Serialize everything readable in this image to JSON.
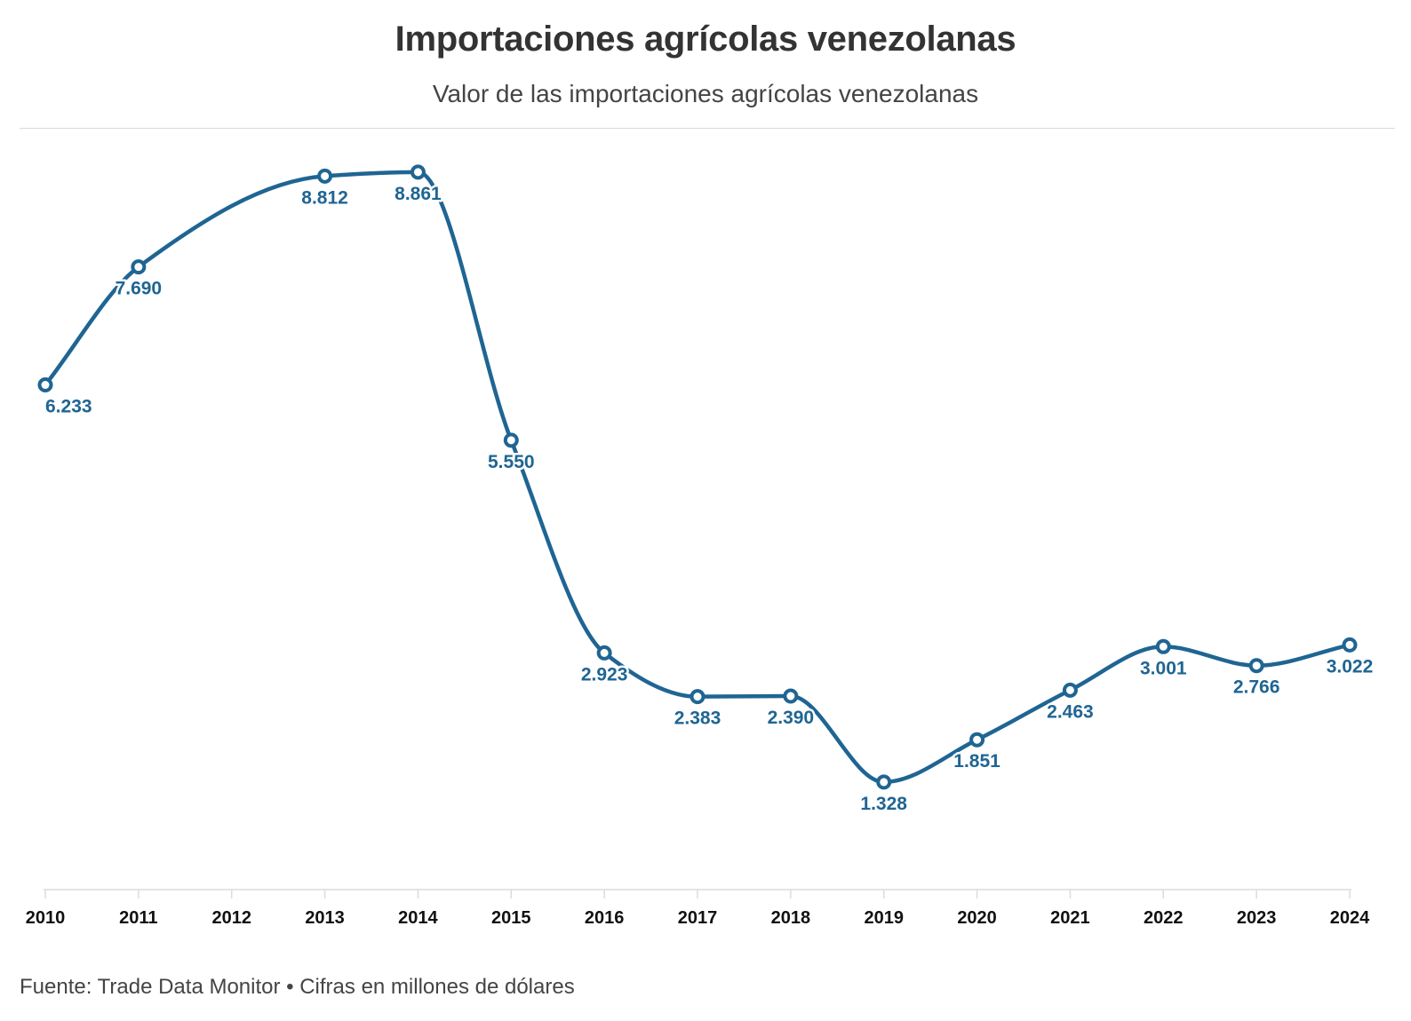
{
  "title": "Importaciones agrícolas venezolanas",
  "subtitle": "Valor de las importaciones agrícolas venezolanas",
  "footer": {
    "source": "Fuente: Trade Data Monitor • Cifras en millones de dólares"
  },
  "colors": {
    "line": "#1f6593",
    "marker_fill": "#ffffff",
    "label": "#1f6593",
    "axis": "#dcdcdc",
    "tick_text": "#111111"
  },
  "chart_data": {
    "type": "line",
    "title": "Importaciones agrícolas venezolanas",
    "subtitle": "Valor de las importaciones agrícolas venezolanas",
    "xlabel": "",
    "ylabel": "",
    "x": [
      "2010",
      "2011",
      "2012",
      "2013",
      "2014",
      "2015",
      "2016",
      "2017",
      "2018",
      "2019",
      "2020",
      "2021",
      "2022",
      "2023",
      "2024"
    ],
    "series": [
      {
        "values": [
          6233,
          7690,
          null,
          8812,
          8861,
          5550,
          2923,
          2383,
          2390,
          1328,
          1851,
          2463,
          3001,
          2766,
          3022
        ],
        "labels": [
          "6.233",
          "7.690",
          null,
          "8.812",
          "8.861",
          "5.550",
          "2.923",
          "2.383",
          "2.390",
          "1.328",
          "1.851",
          "2.463",
          "3.001",
          "2.766",
          "3.022"
        ]
      }
    ],
    "ylim": [
      0,
      9600
    ],
    "grid": false,
    "legend": "none",
    "curve": "smooth",
    "markers": "hollow-circle"
  }
}
